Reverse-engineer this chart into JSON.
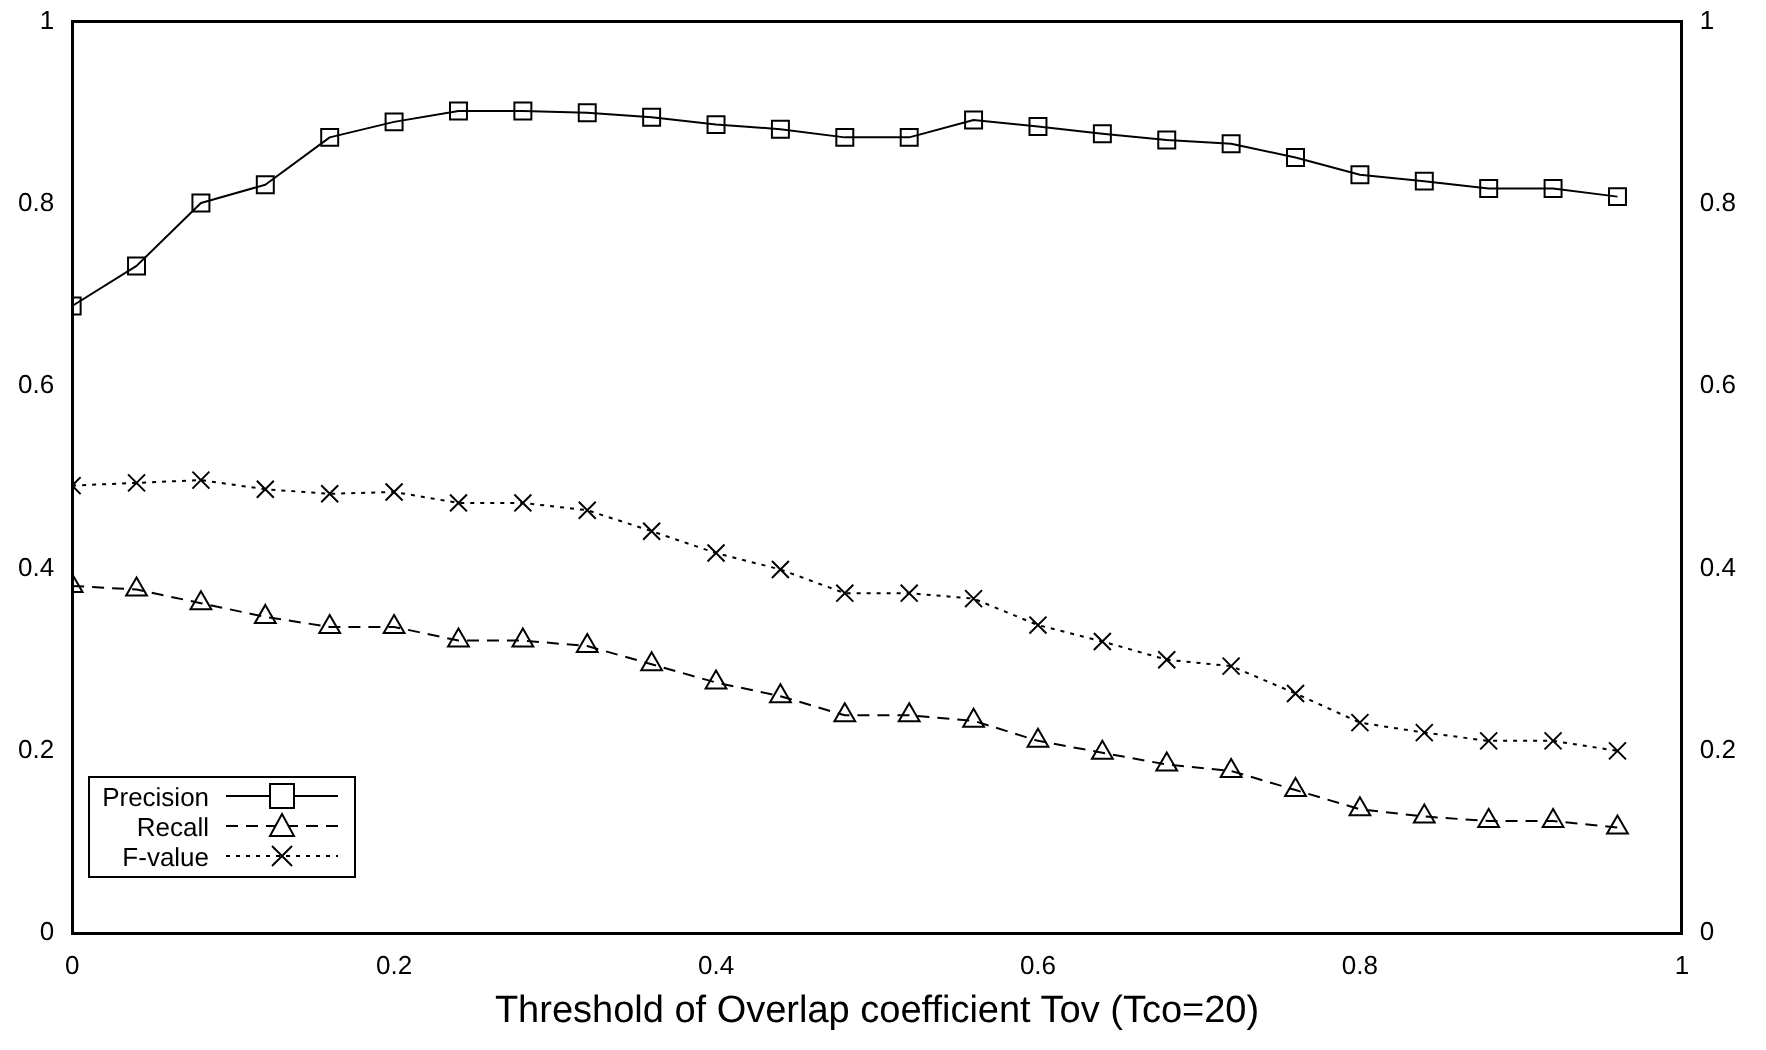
{
  "chart_data": {
    "type": "line",
    "xlabel": "Threshold of Overlap coefficient Tov (Tco=20)",
    "x": [
      0,
      0.04,
      0.08,
      0.12,
      0.16,
      0.2,
      0.24,
      0.28,
      0.32,
      0.36,
      0.4,
      0.44,
      0.48,
      0.52,
      0.56,
      0.6,
      0.64,
      0.68,
      0.72,
      0.76,
      0.8,
      0.84,
      0.88,
      0.92,
      0.96
    ],
    "xlim": [
      0,
      1
    ],
    "xticks": [
      0,
      0.2,
      0.4,
      0.6,
      0.8,
      1
    ],
    "ylim": [
      0,
      1
    ],
    "yticks": [
      0,
      0.2,
      0.4,
      0.6,
      0.8,
      1
    ],
    "y2lim": [
      0,
      1
    ],
    "y2ticks": [
      0,
      0.2,
      0.4,
      0.6,
      0.8,
      1
    ],
    "grid": false,
    "legend": "bottom left",
    "series": [
      {
        "name": "Precision",
        "color": "#000000",
        "marker": "square",
        "line_style": "solid",
        "values": [
          0.688,
          0.732,
          0.801,
          0.821,
          0.873,
          0.89,
          0.902,
          0.902,
          0.9,
          0.895,
          0.887,
          0.882,
          0.873,
          0.873,
          0.892,
          0.885,
          0.877,
          0.87,
          0.866,
          0.851,
          0.832,
          0.825,
          0.817,
          0.817,
          0.808
        ]
      },
      {
        "name": "Recall",
        "color": "#000000",
        "marker": "triangle",
        "line_style": "dashed",
        "values": [
          0.381,
          0.377,
          0.362,
          0.347,
          0.336,
          0.336,
          0.321,
          0.321,
          0.315,
          0.295,
          0.275,
          0.26,
          0.239,
          0.239,
          0.233,
          0.211,
          0.198,
          0.185,
          0.178,
          0.157,
          0.136,
          0.128,
          0.123,
          0.123,
          0.116
        ]
      },
      {
        "name": "F-value",
        "color": "#000000",
        "marker": "cross",
        "line_style": "dotted",
        "values": [
          0.491,
          0.494,
          0.497,
          0.487,
          0.482,
          0.484,
          0.472,
          0.472,
          0.464,
          0.441,
          0.417,
          0.399,
          0.373,
          0.373,
          0.367,
          0.338,
          0.32,
          0.3,
          0.293,
          0.263,
          0.231,
          0.22,
          0.211,
          0.211,
          0.2
        ]
      }
    ]
  }
}
